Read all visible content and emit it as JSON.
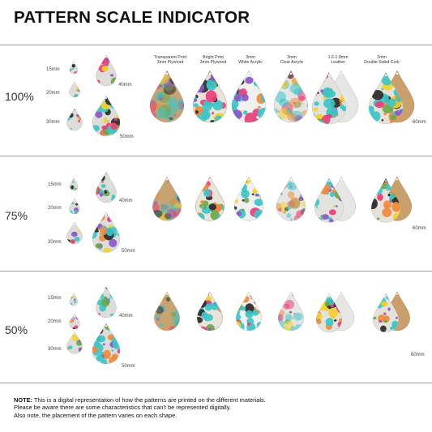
{
  "title": "PATTERN SCALE INDICATOR",
  "scales": [
    "100%",
    "75%",
    "50%"
  ],
  "size_labels": [
    "15mm",
    "20mm",
    "30mm",
    "40mm",
    "50mm",
    "60mm"
  ],
  "materials": [
    {
      "line1": "Transparent Print",
      "line2": "3mm Plywood"
    },
    {
      "line1": "Bright Print",
      "line2": "3mm Plywood"
    },
    {
      "line1": "3mm",
      "line2": "White Acrylic"
    },
    {
      "line1": "3mm",
      "line2": "Clear Acrylic"
    },
    {
      "line1": "1.6-1.8mm",
      "line2": "Leather"
    },
    {
      "line1": "2mm",
      "line2": "Double Sided Cork"
    }
  ],
  "note": {
    "label": "NOTE:",
    "line1": " This is a digital representation of how the patterns are printed on the different materials.",
    "line2": "Please be aware there are some characteristics that can't be represented digitally.",
    "line3": "Also note, the placement of the pattern varies on each shape."
  },
  "colors": {
    "teal": "#3cc5c8",
    "yellow": "#f4d12a",
    "pink": "#ea3f78",
    "purple": "#8a58c7",
    "green": "#6aa84a",
    "cork": "#c9a06c",
    "white_acrylic": "#f0f0ee",
    "leather": "#e6e6e4"
  }
}
